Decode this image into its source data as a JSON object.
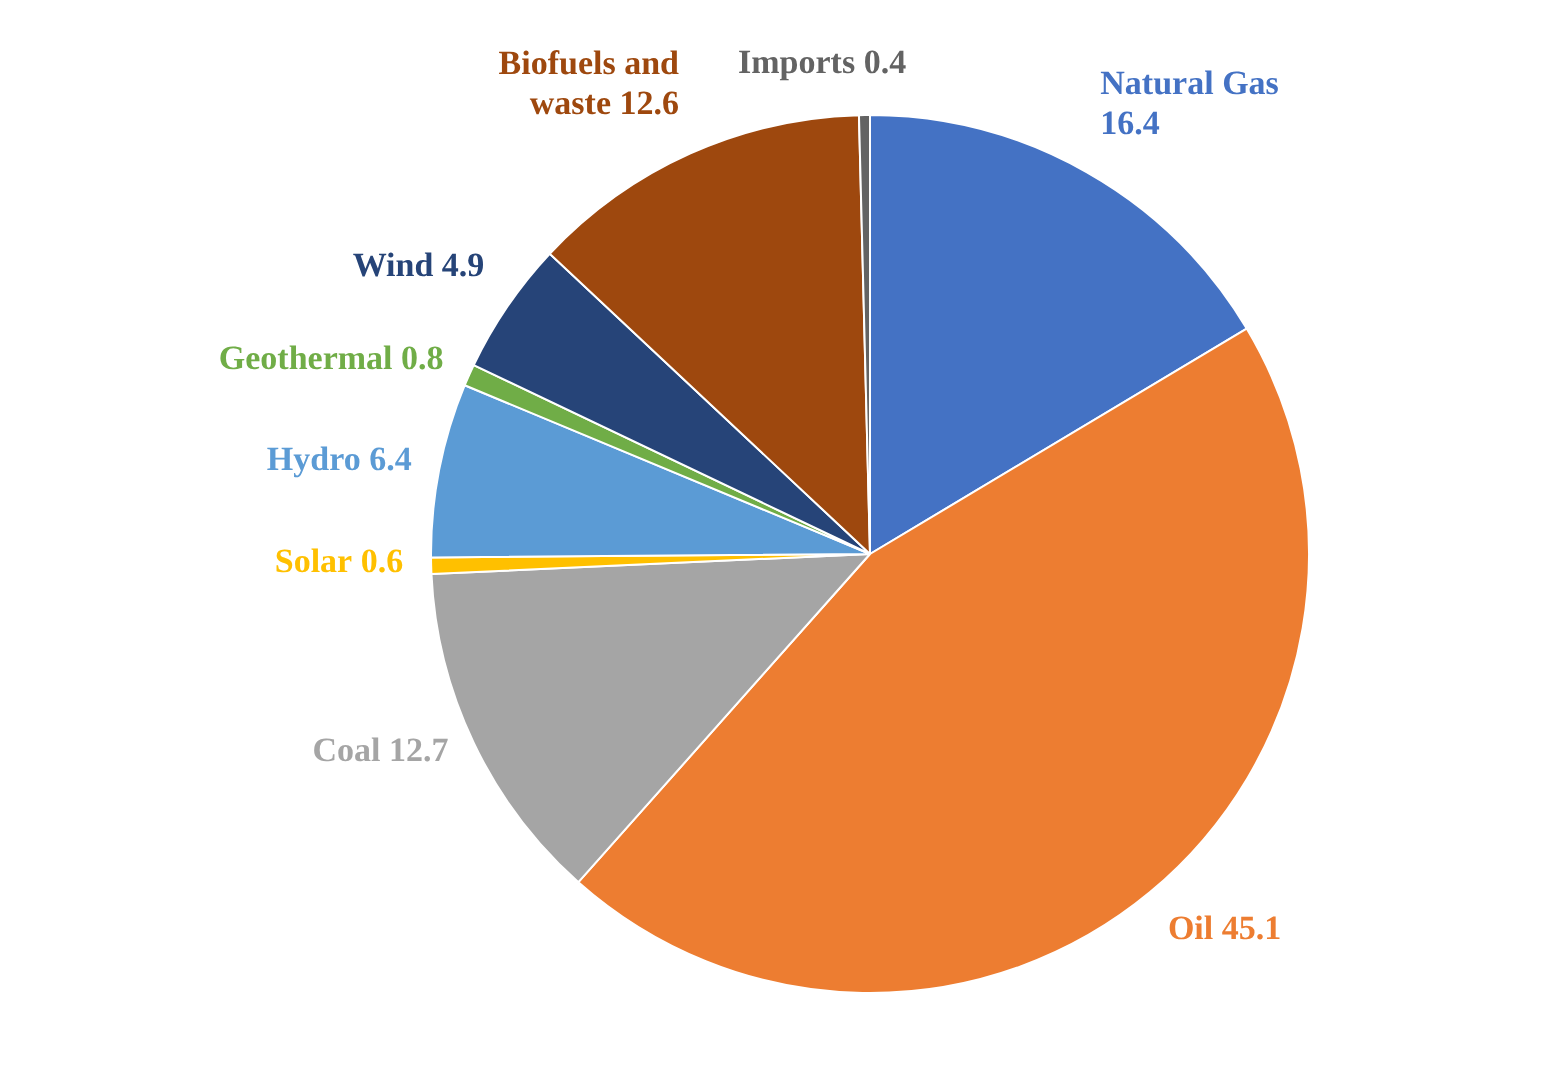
{
  "chart_data": {
    "type": "pie",
    "categories": [
      "Natural Gas",
      "Oil",
      "Coal",
      "Solar",
      "Hydro",
      "Geothermal",
      "Wind",
      "Biofuels and waste",
      "Imports"
    ],
    "values": [
      16.4,
      45.1,
      12.7,
      0.6,
      6.4,
      0.8,
      4.9,
      12.6,
      0.4
    ],
    "colors": [
      "#4472c4",
      "#ed7d31",
      "#a5a5a5",
      "#ffc000",
      "#5b9bd5",
      "#70ad47",
      "#264478",
      "#9e480e",
      "#636363"
    ],
    "data_labels": true,
    "legend": false
  }
}
